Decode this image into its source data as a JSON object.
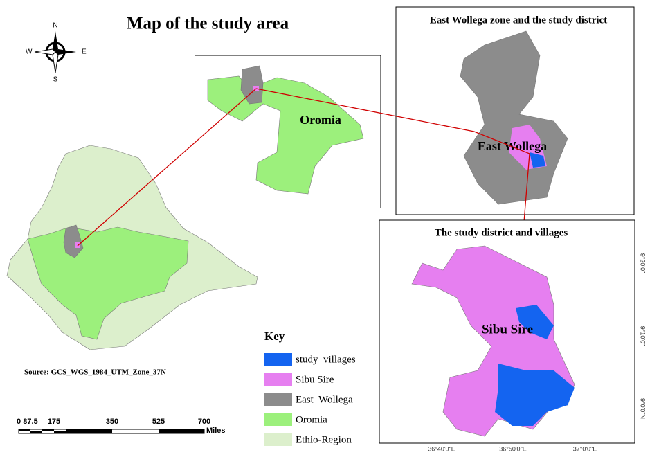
{
  "title": "Map of the study area",
  "compass": {
    "north": "N",
    "south": "S",
    "east": "E",
    "west": "W"
  },
  "main_map": {
    "label": "Oromia"
  },
  "inset_zone": {
    "title": "East Wollega zone and the study district",
    "label": "East Wollega"
  },
  "inset_district": {
    "title": "The study district and villages",
    "label": "Sibu Sire",
    "lat_labels": [
      "9°20'0\"",
      "9°10'0\"",
      "9°0'0\"N"
    ],
    "lon_labels": [
      "36°40'0\"E",
      "36°50'0\"E",
      "37°0'0\"E"
    ]
  },
  "source": "Source: GCS_WGS_1984_UTM_Zone_37N",
  "scale_bar": {
    "labels": [
      "0",
      "87.5",
      "175",
      "350",
      "525",
      "700"
    ],
    "unit": "Miles"
  },
  "legend": {
    "title": "Key",
    "items": [
      {
        "label": "study  villages",
        "color": "#1464f0"
      },
      {
        "label": "Sibu Sire",
        "color": "#e67ff0"
      },
      {
        "label": "East  Wollega",
        "color": "#8c8c8c"
      },
      {
        "label": "Oromia",
        "color": "#9cf07c"
      },
      {
        "label": "Ethio-Region",
        "color": "#dcefcc"
      }
    ]
  }
}
